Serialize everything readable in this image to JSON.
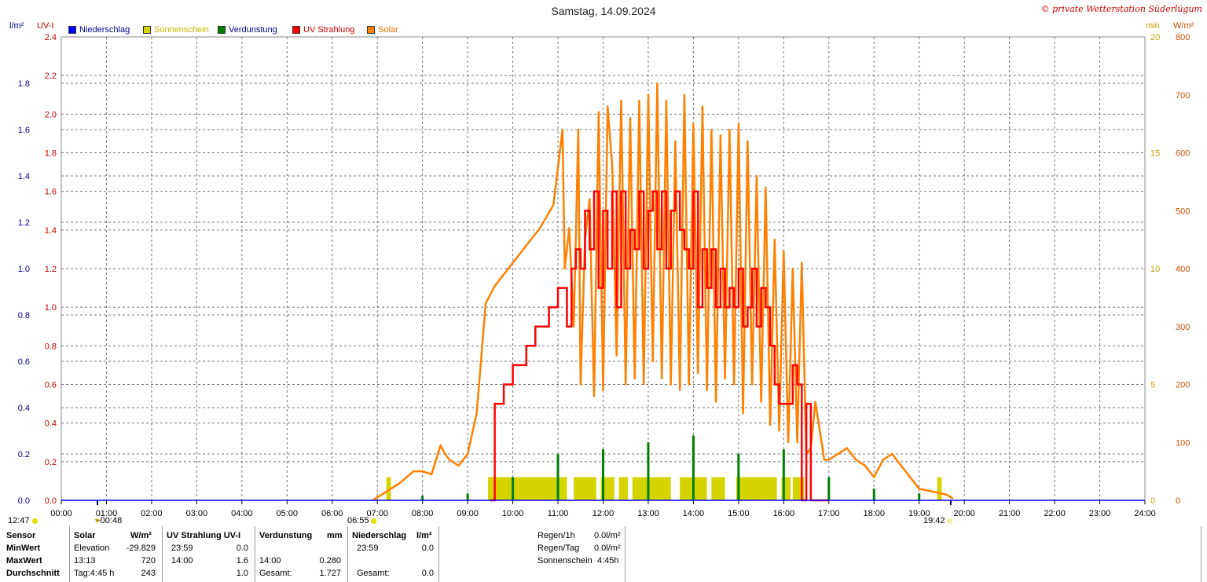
{
  "title": "Samstag, 14.09.2024",
  "copyright": "© private Wetterstation Süderlügum",
  "colors": {
    "niederschlag": "#0000ff",
    "sonnenschein": "#d4d400",
    "verdunstung": "#008000",
    "uv": "#ff0000",
    "solar": "#ff8000",
    "axis_left1": "#00008b",
    "axis_left2": "#c00000",
    "axis_right1": "#c8a000",
    "axis_right2": "#c85000"
  },
  "legend": [
    {
      "label": "Niederschlag",
      "color": "#0000ff",
      "text_color": "#00008b"
    },
    {
      "label": "Sonnenschein",
      "color": "#d4d400",
      "text_color": "#c8b400"
    },
    {
      "label": "Verdunstung",
      "color": "#008000",
      "text_color": "#00008b"
    },
    {
      "label": "UV Strahlung",
      "color": "#ff0000",
      "text_color": "#cc0000"
    },
    {
      "label": "Solar",
      "color": "#ff8000",
      "text_color": "#e07000"
    }
  ],
  "axis_units": {
    "left1": "l/m²",
    "left2": "UV-I",
    "right1": "min",
    "right2": "W/m²"
  },
  "sun_times": {
    "sunrise": "06:55",
    "sunset": "19:42",
    "day_length": "12:47",
    "transit_diff": "-00:48"
  },
  "chart_data": {
    "type": "line",
    "title": "Samstag, 14.09.2024",
    "x_ticks": [
      "00:00",
      "01:00",
      "02:00",
      "03:00",
      "04:00",
      "05:00",
      "06:00",
      "07:00",
      "08:00",
      "09:00",
      "10:00",
      "11:00",
      "12:00",
      "13:00",
      "14:00",
      "15:00",
      "16:00",
      "17:00",
      "18:00",
      "19:00",
      "20:00",
      "21:00",
      "22:00",
      "23:00",
      "24:00"
    ],
    "axes": {
      "left1": {
        "label": "l/m²",
        "range": [
          0,
          2.0
        ],
        "ticks": [
          "0.0",
          "0.2",
          "0.4",
          "0.6",
          "0.8",
          "1.0",
          "1.2",
          "1.4",
          "1.6",
          "1.8"
        ]
      },
      "left2": {
        "label": "UV-I",
        "range": [
          0,
          2.4
        ],
        "ticks": [
          "0.0",
          "0.2",
          "0.4",
          "0.6",
          "0.8",
          "1.0",
          "1.2",
          "1.4",
          "1.6",
          "1.8",
          "2.0",
          "2.2",
          "2.4"
        ]
      },
      "right1": {
        "label": "min",
        "range": [
          0,
          20
        ],
        "ticks": [
          "0",
          "5",
          "10",
          "15",
          "20"
        ]
      },
      "right2": {
        "label": "W/m²",
        "range": [
          0,
          800
        ],
        "ticks": [
          "0",
          "100",
          "200",
          "300",
          "400",
          "500",
          "600",
          "700",
          "800"
        ]
      }
    },
    "series": [
      {
        "name": "Solar",
        "axis": "right2",
        "x": [
          6.9,
          7.2,
          7.5,
          7.8,
          8.0,
          8.2,
          8.4,
          8.5,
          8.6,
          8.8,
          9.0,
          9.2,
          9.4,
          9.6,
          9.8,
          10.0,
          10.3,
          10.6,
          10.9,
          11.1,
          11.15,
          11.25,
          11.35,
          11.45,
          11.5,
          11.6,
          11.7,
          11.8,
          11.9,
          12.0,
          12.1,
          12.2,
          12.3,
          12.4,
          12.5,
          12.6,
          12.7,
          12.8,
          12.9,
          13.0,
          13.1,
          13.2,
          13.3,
          13.4,
          13.5,
          13.6,
          13.7,
          13.8,
          13.9,
          14.0,
          14.1,
          14.2,
          14.3,
          14.4,
          14.5,
          14.6,
          14.7,
          14.8,
          14.9,
          15.0,
          15.1,
          15.2,
          15.3,
          15.4,
          15.5,
          15.6,
          15.7,
          15.8,
          15.9,
          16.0,
          16.1,
          16.2,
          16.3,
          16.4,
          16.5,
          16.6,
          16.7,
          16.8,
          16.9,
          17.0,
          17.2,
          17.4,
          17.6,
          17.8,
          18.0,
          18.2,
          18.4,
          18.6,
          18.8,
          19.0,
          19.3,
          19.6,
          19.75
        ],
        "y": [
          0,
          15,
          30,
          50,
          50,
          45,
          95,
          80,
          70,
          60,
          80,
          150,
          340,
          370,
          390,
          410,
          440,
          470,
          510,
          640,
          400,
          470,
          300,
          640,
          200,
          450,
          520,
          180,
          670,
          190,
          680,
          580,
          250,
          690,
          200,
          660,
          210,
          690,
          200,
          700,
          240,
          720,
          210,
          690,
          200,
          620,
          190,
          700,
          200,
          650,
          220,
          680,
          190,
          640,
          170,
          630,
          210,
          640,
          200,
          650,
          150,
          620,
          200,
          560,
          170,
          540,
          130,
          450,
          120,
          430,
          100,
          400,
          100,
          410,
          80,
          90,
          170,
          120,
          70,
          70,
          80,
          90,
          70,
          60,
          40,
          70,
          80,
          60,
          40,
          20,
          15,
          10,
          3
        ]
      },
      {
        "name": "UV Strahlung",
        "axis": "left2",
        "x": [
          9.5,
          9.6,
          9.8,
          10.0,
          10.3,
          10.5,
          10.8,
          11.0,
          11.15,
          11.2,
          11.3,
          11.4,
          11.5,
          11.6,
          11.7,
          11.8,
          11.9,
          12.0,
          12.1,
          12.2,
          12.3,
          12.4,
          12.5,
          12.6,
          12.7,
          12.8,
          12.9,
          13.0,
          13.1,
          13.2,
          13.3,
          13.4,
          13.5,
          13.6,
          13.7,
          13.8,
          13.9,
          14.0,
          14.1,
          14.2,
          14.3,
          14.4,
          14.5,
          14.6,
          14.7,
          14.8,
          14.9,
          15.0,
          15.1,
          15.2,
          15.3,
          15.4,
          15.5,
          15.6,
          15.7,
          15.8,
          15.9,
          16.0,
          16.1,
          16.2,
          16.3,
          16.4,
          16.45,
          16.5,
          16.6,
          16.8,
          16.9,
          17.0
        ],
        "y": [
          0,
          0.5,
          0.6,
          0.7,
          0.8,
          0.9,
          1.0,
          1.1,
          1.1,
          0.9,
          1.2,
          1.3,
          1.2,
          1.5,
          1.3,
          1.6,
          1.1,
          1.5,
          1.2,
          1.6,
          1.0,
          1.6,
          1.2,
          1.4,
          1.3,
          1.6,
          1.2,
          1.5,
          1.6,
          1.3,
          1.6,
          1.2,
          1.5,
          1.6,
          1.4,
          1.3,
          1.2,
          1.6,
          1.0,
          1.3,
          1.1,
          1.3,
          1.0,
          1.2,
          1.0,
          1.1,
          1.0,
          1.2,
          0.9,
          1.0,
          1.2,
          0.9,
          1.1,
          1.0,
          0.8,
          0.6,
          0.5,
          0.5,
          0.5,
          0.7,
          0.6,
          0.0,
          0.0,
          0.5,
          0.0,
          0.0,
          0.0,
          0.0
        ]
      },
      {
        "name": "Sonnenschein",
        "axis": "right1",
        "blocks": [
          [
            7.2,
            7.3
          ],
          [
            9.45,
            11.2
          ],
          [
            11.35,
            11.85
          ],
          [
            11.95,
            12.25
          ],
          [
            12.35,
            12.55
          ],
          [
            12.65,
            13.5
          ],
          [
            13.7,
            14.3
          ],
          [
            14.4,
            14.7
          ],
          [
            14.95,
            15.85
          ],
          [
            15.95,
            16.15
          ],
          [
            16.2,
            16.45
          ],
          [
            19.4,
            19.5
          ]
        ],
        "level": 1
      },
      {
        "name": "Verdunstung",
        "axis": "left1",
        "x": [
          8.0,
          9.0,
          10.0,
          11.0,
          12.0,
          13.0,
          14.0,
          15.0,
          16.0,
          17.0,
          18.0,
          19.0
        ],
        "y": [
          0.02,
          0.03,
          0.1,
          0.2,
          0.22,
          0.25,
          0.28,
          0.2,
          0.22,
          0.1,
          0.05,
          0.03
        ]
      }
    ]
  },
  "stats": {
    "headers": {
      "sensor": "Sensor",
      "solar": "Solar",
      "solar_unit": "W/m²",
      "uv": "UV Strahlung UV-I",
      "verd": "Verdunstung",
      "verd_unit": "mm",
      "nied": "Niederschlag",
      "nied_unit": "l/m²"
    },
    "rows": [
      {
        "label": "MinWert",
        "solar_a": "Elevation",
        "solar_b": "-29.829",
        "uv_a": "23:59",
        "uv_b": "0.0",
        "verd_a": "",
        "verd_b": "",
        "nied_a": "23:59",
        "nied_b": "0.0"
      },
      {
        "label": "MaxWert",
        "solar_a": "13:13",
        "solar_b": "720",
        "uv_a": "14:00",
        "uv_b": "1.6",
        "verd_a": "14:00",
        "verd_b": "0.280",
        "nied_a": "",
        "nied_b": ""
      },
      {
        "label": "Durchschnitt",
        "solar_a": "Tag:4:45 h",
        "solar_b": "243",
        "uv_a": "",
        "uv_b": "1.0",
        "verd_a": "Gesamt:",
        "verd_b": "1.727",
        "nied_a": "Gesamt:",
        "nied_b": "0.0"
      }
    ],
    "extra": [
      {
        "label": "Regen/1h",
        "value": "0.0l/m²"
      },
      {
        "label": "Regen/Tag",
        "value": "0.0l/m²"
      },
      {
        "label": "Sonnenschein",
        "value": "4:45h"
      }
    ]
  }
}
